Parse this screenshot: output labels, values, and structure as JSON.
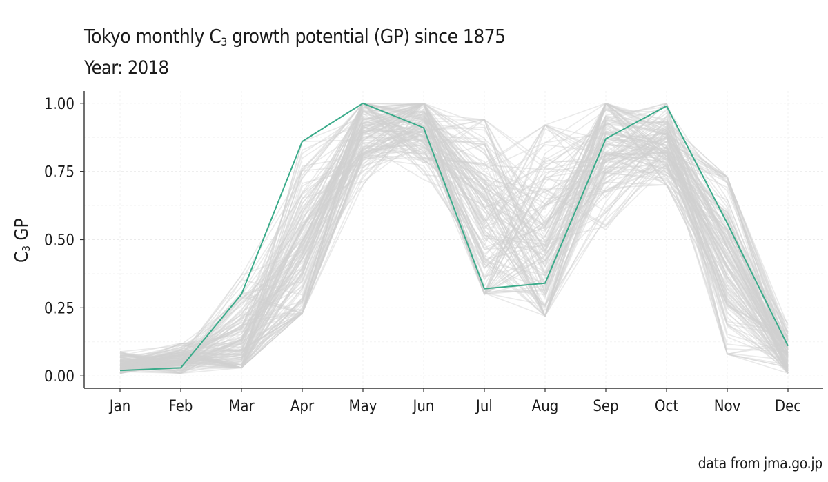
{
  "chart_data": {
    "type": "line",
    "title_main": "Tokyo monthly C",
    "title_sub": "3",
    "title_tail": " growth potential (GP) since 1875",
    "subtitle_label": "Year: ",
    "subtitle_year": "2018",
    "ylabel_main": "C",
    "ylabel_sub": "3",
    "ylabel_tail": " GP",
    "xlabel": "",
    "caption": "data from jma.go.jp",
    "categories": [
      "Jan",
      "Feb",
      "Mar",
      "Apr",
      "May",
      "Jun",
      "Jul",
      "Aug",
      "Sep",
      "Oct",
      "Nov",
      "Dec"
    ],
    "ylim": [
      -0.045,
      1.045
    ],
    "yticks": [
      0.0,
      0.25,
      0.5,
      0.75,
      1.0
    ],
    "ytick_labels": [
      "0.00",
      "0.25",
      "0.50",
      "0.75",
      "1.00"
    ],
    "grid": true,
    "highlight_series": {
      "name": "2018",
      "color": "#3aab8a",
      "values": [
        0.02,
        0.03,
        0.3,
        0.86,
        1.0,
        0.91,
        0.32,
        0.34,
        0.87,
        0.99,
        0.56,
        0.11
      ]
    },
    "background_series": {
      "description": "other years 1875-2017",
      "count": 143,
      "color": "#d0d0d0",
      "mean": [
        0.04,
        0.05,
        0.12,
        0.48,
        0.9,
        0.92,
        0.58,
        0.52,
        0.84,
        0.85,
        0.42,
        0.06
      ],
      "min": [
        0.01,
        0.01,
        0.03,
        0.23,
        0.7,
        0.72,
        0.3,
        0.22,
        0.52,
        0.7,
        0.08,
        0.01
      ],
      "max": [
        0.09,
        0.12,
        0.37,
        0.86,
        1.0,
        1.0,
        0.94,
        0.92,
        1.0,
        1.0,
        0.73,
        0.21
      ]
    }
  }
}
